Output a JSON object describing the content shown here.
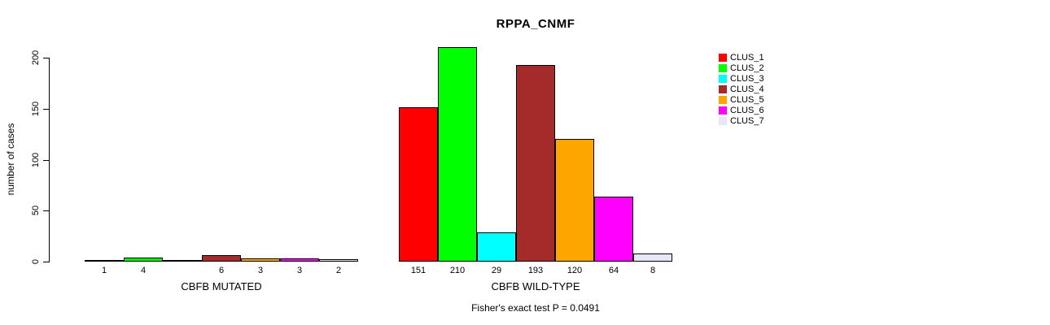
{
  "title": "RPPA_CNMF",
  "chart_data": {
    "type": "bar",
    "title": "RPPA_CNMF",
    "xlabel": "",
    "ylabel": "number of cases",
    "ylim": [
      0,
      200
    ],
    "yticks": [
      0,
      50,
      100,
      150,
      200
    ],
    "grid": false,
    "legend_position": "right",
    "categories": [
      "CLUS_1",
      "CLUS_2",
      "CLUS_3",
      "CLUS_4",
      "CLUS_5",
      "CLUS_6",
      "CLUS_7"
    ],
    "colors": [
      "#FF0000",
      "#00FF00",
      "#00FFFF",
      "#A52A2A",
      "#FFA500",
      "#FF00FF",
      "#E6E6FA"
    ],
    "groups": [
      {
        "label": "CBFB MUTATED",
        "values": [
          1,
          4,
          0,
          6,
          3,
          3,
          2
        ],
        "bar_labels": [
          "1",
          "4",
          "",
          "6",
          "3",
          "3",
          "2"
        ]
      },
      {
        "label": "CBFB WILD-TYPE",
        "values": [
          151,
          210,
          29,
          193,
          120,
          64,
          8
        ],
        "bar_labels": [
          "151",
          "210",
          "29",
          "193",
          "120",
          "64",
          "8"
        ]
      }
    ],
    "legend": [
      {
        "label": "CLUS_1",
        "color": "#FF0000"
      },
      {
        "label": "CLUS_2",
        "color": "#00FF00"
      },
      {
        "label": "CLUS_3",
        "color": "#00FFFF"
      },
      {
        "label": "CLUS_4",
        "color": "#A52A2A"
      },
      {
        "label": "CLUS_5",
        "color": "#FFA500"
      },
      {
        "label": "CLUS_6",
        "color": "#FF00FF"
      },
      {
        "label": "CLUS_7",
        "color": "#E6E6FA"
      }
    ],
    "annotation": "Fisher's exact test P = 0.0491"
  }
}
